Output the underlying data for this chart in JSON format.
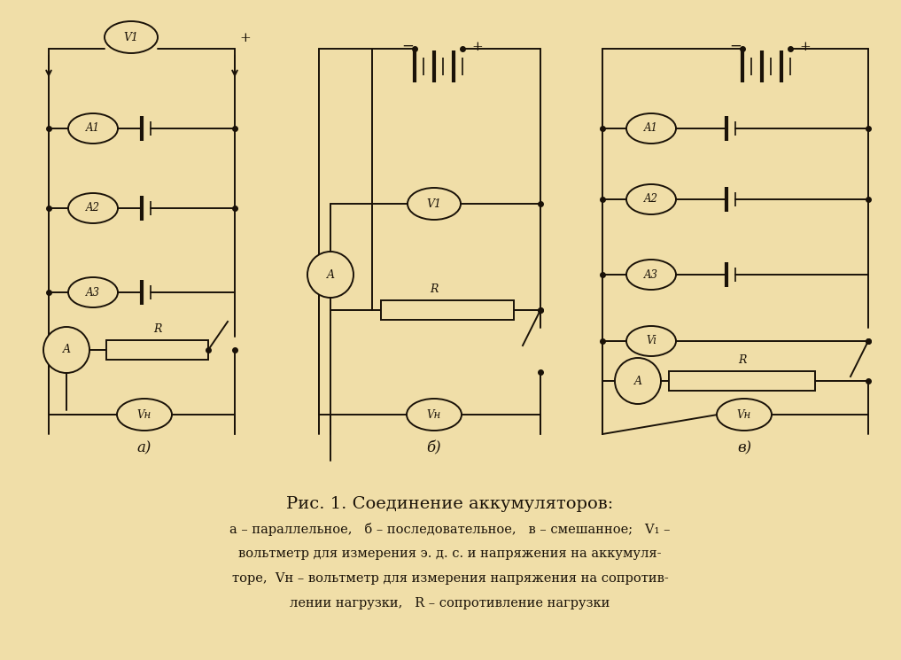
{
  "bg_color": "#f0dea8",
  "line_color": "#1a1208",
  "lw": 1.4,
  "fig_w": 10.17,
  "fig_h": 7.45,
  "dpi": 100,
  "title": "Рис. 1. Соединение аккумуляторов:",
  "caption_lines": [
    "а – параллельное,   б – последовательное,   в – смешанное;   V₁ –",
    "вольтметр для измерения э. д. с. и напряжения на аккумуля-",
    "торе,  Vн – вольтметр для измерения напряжения на сопротив-",
    "лении нагрузки,   R – сопротивление нагрузки"
  ]
}
